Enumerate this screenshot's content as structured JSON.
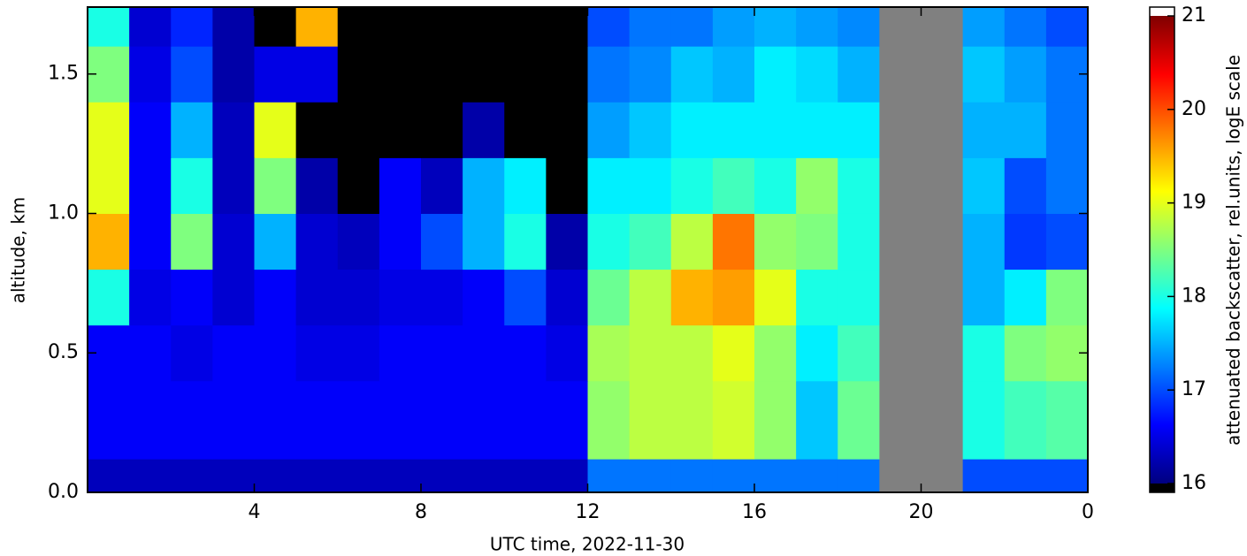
{
  "chart_data": {
    "type": "heatmap",
    "xlabel": "UTC time,  2022-11-30",
    "ylabel": "altitude, km",
    "colorbar_label": "attenuated backscatter,  rel.units,  logE scale",
    "x_edges": [
      0,
      1,
      2,
      3,
      4,
      5,
      6,
      7,
      8,
      9,
      10,
      11,
      12,
      13,
      14,
      15,
      16,
      17,
      18,
      19,
      20,
      21,
      22,
      23,
      24
    ],
    "y_edges": [
      0,
      0.12,
      0.4,
      0.6,
      0.8,
      1.0,
      1.2,
      1.4,
      1.6,
      1.74
    ],
    "z": [
      [
        16.3,
        16.3,
        16.3,
        16.3,
        16.3,
        16.3,
        16.3,
        16.3,
        16.3,
        16.3,
        16.3,
        16.3,
        17.2,
        17.2,
        17.2,
        17.2,
        17.2,
        17.2,
        17.2,
        null,
        null,
        17.0,
        17.0,
        17.0
      ],
      [
        16.6,
        16.6,
        16.6,
        16.6,
        16.6,
        16.6,
        16.6,
        16.6,
        16.6,
        16.6,
        16.6,
        16.6,
        18.6,
        18.8,
        18.8,
        18.9,
        18.6,
        17.6,
        18.4,
        null,
        null,
        18.0,
        18.2,
        18.3
      ],
      [
        16.6,
        16.6,
        16.5,
        16.6,
        16.6,
        16.5,
        16.5,
        16.6,
        16.6,
        16.6,
        16.6,
        16.5,
        18.7,
        18.8,
        18.8,
        19.0,
        18.6,
        17.8,
        18.2,
        null,
        null,
        18.0,
        18.5,
        18.6
      ],
      [
        18.0,
        16.5,
        16.6,
        16.4,
        16.6,
        16.4,
        16.4,
        16.5,
        16.5,
        16.6,
        17.0,
        16.4,
        18.4,
        18.8,
        19.5,
        19.6,
        19.0,
        18.0,
        18.0,
        null,
        null,
        17.5,
        17.8,
        18.5
      ],
      [
        19.5,
        16.6,
        18.5,
        16.4,
        17.5,
        16.4,
        16.3,
        16.6,
        17.0,
        17.5,
        18.0,
        16.2,
        18.0,
        18.2,
        18.8,
        19.8,
        18.6,
        18.5,
        18.0,
        null,
        null,
        17.5,
        16.9,
        17.0
      ],
      [
        19.0,
        16.6,
        18.0,
        16.3,
        18.5,
        16.2,
        15.8,
        16.6,
        16.3,
        17.5,
        17.8,
        15.5,
        17.8,
        17.8,
        18.0,
        18.2,
        18.0,
        18.6,
        18.0,
        null,
        null,
        17.6,
        17.0,
        17.2
      ],
      [
        19.0,
        16.6,
        17.5,
        16.3,
        19.0,
        15.6,
        15.4,
        15.6,
        15.8,
        16.2,
        15.5,
        15.5,
        17.4,
        17.6,
        17.8,
        17.8,
        17.8,
        17.8,
        17.8,
        null,
        null,
        17.5,
        17.5,
        17.2
      ],
      [
        18.5,
        16.5,
        17.0,
        16.2,
        16.5,
        16.5,
        15.3,
        15.3,
        15.5,
        15.7,
        15.5,
        15.4,
        17.2,
        17.3,
        17.6,
        17.5,
        17.8,
        17.7,
        17.5,
        null,
        null,
        17.6,
        17.4,
        17.2
      ],
      [
        18.0,
        16.4,
        16.8,
        16.2,
        15.8,
        19.5,
        15.4,
        15.3,
        15.4,
        15.4,
        15.4,
        15.4,
        17.0,
        17.2,
        17.2,
        17.4,
        17.5,
        17.4,
        17.3,
        null,
        null,
        17.4,
        17.2,
        17.0
      ]
    ],
    "xlim": [
      0,
      24
    ],
    "xticks": [
      4,
      8,
      12,
      16,
      20,
      {
        "value": 24,
        "label": "0"
      }
    ],
    "ylim": [
      0,
      1.74
    ],
    "yticks": [
      {
        "value": 0,
        "label": "0.0"
      },
      0.5,
      {
        "value": 1,
        "label": "1.0"
      },
      1.5
    ],
    "clim": [
      16,
      21
    ],
    "cticks": [
      16,
      17,
      18,
      19,
      20,
      21
    ],
    "colormap": [
      "#00007f",
      "#0000ff",
      "#007fff",
      "#00ffff",
      "#7fff7f",
      "#ffff00",
      "#ff7f00",
      "#ff0000",
      "#7f0000"
    ],
    "under_color": "#000000",
    "missing_color": "#808080"
  }
}
